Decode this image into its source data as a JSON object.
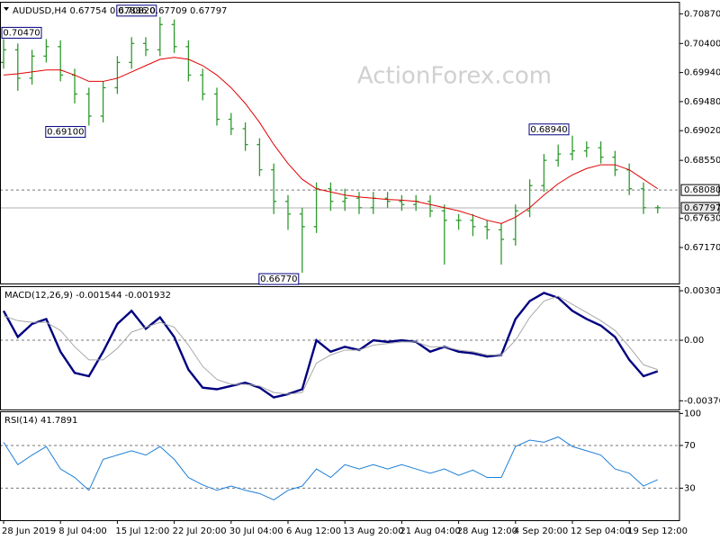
{
  "chart_data": [
    {
      "type": "ohlc",
      "title": "AUDUSD,H4  0.67754 0.67836 0.67709 0.67797",
      "watermark": "ActionForex.com",
      "color": "#2e9a2e",
      "categories": [
        "28 Jun 2019",
        null,
        null,
        null,
        "8 Jul 04:00",
        null,
        null,
        null,
        "15 Jul 12:00",
        null,
        null,
        null,
        "22 Jul 20:00",
        null,
        null,
        null,
        "30 Jul 04:00",
        null,
        null,
        null,
        "6 Aug 12:00",
        null,
        null,
        null,
        "13 Aug 20:00",
        null,
        null,
        null,
        "21 Aug 04:00",
        null,
        null,
        null,
        "28 Aug 12:00",
        null,
        null,
        null,
        "4 Sep 20:00",
        null,
        null,
        null,
        "12 Sep 04:00",
        null,
        null,
        null,
        "19 Sep 12:00",
        null,
        null
      ],
      "open": [
        0.701,
        0.703,
        0.6985,
        0.702,
        0.7035,
        0.699,
        0.696,
        0.6925,
        0.697,
        0.701,
        0.704,
        0.703,
        0.707,
        0.7035,
        0.699,
        0.696,
        0.692,
        0.6905,
        0.688,
        0.684,
        0.679,
        0.677,
        0.675,
        0.681,
        0.679,
        0.6795,
        0.678,
        0.6795,
        0.679,
        0.6785,
        0.679,
        0.6775,
        0.676,
        0.676,
        0.675,
        0.6745,
        0.673,
        0.6775,
        0.6815,
        0.6855,
        0.6865,
        0.687,
        0.6875,
        0.686,
        0.684,
        0.681,
        0.678
      ],
      "high": [
        0.7047,
        0.704,
        0.703,
        0.7047,
        0.7045,
        0.7,
        0.697,
        0.698,
        0.702,
        0.705,
        0.705,
        0.7082,
        0.7078,
        0.7045,
        0.7,
        0.697,
        0.693,
        0.6915,
        0.689,
        0.685,
        0.68,
        0.678,
        0.682,
        0.682,
        0.681,
        0.6805,
        0.6805,
        0.6805,
        0.68,
        0.68,
        0.68,
        0.6785,
        0.677,
        0.677,
        0.676,
        0.6755,
        0.6785,
        0.6825,
        0.6865,
        0.688,
        0.6894,
        0.6885,
        0.6885,
        0.687,
        0.685,
        0.682,
        0.6784
      ],
      "low": [
        0.7,
        0.6965,
        0.6975,
        0.701,
        0.698,
        0.6945,
        0.691,
        0.6915,
        0.696,
        0.7,
        0.702,
        0.702,
        0.7025,
        0.698,
        0.695,
        0.691,
        0.6895,
        0.687,
        0.683,
        0.677,
        0.6745,
        0.6677,
        0.674,
        0.6775,
        0.6775,
        0.677,
        0.677,
        0.678,
        0.6775,
        0.6775,
        0.6765,
        0.669,
        0.6745,
        0.6735,
        0.673,
        0.669,
        0.672,
        0.6765,
        0.6805,
        0.6845,
        0.6855,
        0.686,
        0.685,
        0.683,
        0.68,
        0.677,
        0.6771
      ],
      "close": [
        0.703,
        0.6985,
        0.702,
        0.7035,
        0.699,
        0.696,
        0.6925,
        0.697,
        0.701,
        0.704,
        0.703,
        0.707,
        0.7035,
        0.699,
        0.696,
        0.692,
        0.6905,
        0.688,
        0.684,
        0.679,
        0.677,
        0.675,
        0.681,
        0.679,
        0.6795,
        0.678,
        0.6795,
        0.679,
        0.6785,
        0.679,
        0.6775,
        0.676,
        0.676,
        0.675,
        0.6745,
        0.673,
        0.6775,
        0.6815,
        0.6855,
        0.6865,
        0.687,
        0.6875,
        0.686,
        0.684,
        0.681,
        0.678,
        0.678
      ],
      "series": [
        {
          "color": "#e00000",
          "values": [
            0.699,
            0.6992,
            0.6995,
            0.6998,
            0.6998,
            0.699,
            0.698,
            0.698,
            0.6985,
            0.6995,
            0.7005,
            0.7015,
            0.7018,
            0.7015,
            0.7005,
            0.699,
            0.697,
            0.6945,
            0.6915,
            0.688,
            0.685,
            0.6825,
            0.681,
            0.6805,
            0.68,
            0.6797,
            0.6795,
            0.6793,
            0.6792,
            0.679,
            0.6785,
            0.678,
            0.6775,
            0.6768,
            0.676,
            0.6755,
            0.6765,
            0.678,
            0.68,
            0.6818,
            0.6832,
            0.6842,
            0.6848,
            0.6848,
            0.684,
            0.6825,
            0.681
          ]
        }
      ],
      "ylim": [
        0.666,
        0.7106
      ],
      "yticks": [
        {
          "value": 0.7087,
          "label": "0.70870"
        },
        {
          "value": 0.704,
          "label": "0.70400"
        },
        {
          "value": 0.6994,
          "label": "0.69940"
        },
        {
          "value": 0.6948,
          "label": "0.69480"
        },
        {
          "value": 0.6902,
          "label": "0.69020"
        },
        {
          "value": 0.6855,
          "label": "0.68550"
        },
        {
          "value": 0.6763,
          "label": "0.67630"
        },
        {
          "value": 0.6717,
          "label": "0.67170"
        }
      ],
      "levels": [
        {
          "value": 0.6808,
          "label": "0.68080",
          "dashed": true
        },
        {
          "value": 0.67797,
          "label": "0.67797",
          "dashed": false
        }
      ],
      "annotations": [
        {
          "index": 0,
          "value": 0.7047,
          "label": "0.70470"
        },
        {
          "index": 11,
          "value": 0.7082,
          "label": "0.70820"
        },
        {
          "index": 6,
          "value": 0.691,
          "label": "0.69100"
        },
        {
          "index": 21,
          "value": 0.6677,
          "label": "0.66770"
        },
        {
          "index": 40,
          "value": 0.6894,
          "label": "0.68940"
        }
      ]
    },
    {
      "type": "line",
      "title": "MACD(12,26,9) -0.001544 -0.001932",
      "series": [
        {
          "color": "#000080",
          "values": [
            0.0018,
            0.0002,
            0.001,
            0.0013,
            -0.0007,
            -0.002,
            -0.0022,
            -0.0007,
            0.001,
            0.0018,
            0.0007,
            0.0014,
            0.0002,
            -0.0018,
            -0.0029,
            -0.003,
            -0.0028,
            -0.0026,
            -0.0029,
            -0.0035,
            -0.0033,
            -0.003,
            0,
            -0.0007,
            -0.0004,
            -0.0006,
            0,
            -0.0001,
            0,
            -0.0001,
            -0.0007,
            -0.0004,
            -0.0007,
            -0.0008,
            -0.001,
            -0.0009,
            0.0013,
            0.0024,
            0.0029,
            0.0026,
            0.0018,
            0.0013,
            0.0009,
            0.0002,
            -0.0012,
            -0.0022,
            -0.0019
          ]
        },
        {
          "color": "#a8a8a8",
          "values": [
            0.0015,
            0.0012,
            0.0011,
            0.0011,
            0.0006,
            -0.0004,
            -0.0012,
            -0.0012,
            -0.0005,
            0.0005,
            0.0008,
            0.0011,
            0.0008,
            -0.0003,
            -0.0016,
            -0.0024,
            -0.0027,
            -0.0027,
            -0.0028,
            -0.0032,
            -0.0033,
            -0.0032,
            -0.0014,
            -0.0009,
            -0.0006,
            -0.0006,
            -0.0003,
            -0.0002,
            -0.0001,
            -0.0001,
            -0.0004,
            -0.0004,
            -0.0006,
            -0.0007,
            -0.0009,
            -0.0009,
            0,
            0.0014,
            0.0024,
            0.0027,
            0.0022,
            0.0017,
            0.0012,
            0.0006,
            -0.0004,
            -0.0015,
            -0.0018
          ]
        }
      ],
      "ylim": [
        -0.00424,
        0.00331
      ],
      "yticks": [
        0.003031,
        {
          "value": 0,
          "label": "0.00"
        },
        -0.003706
      ],
      "levels": [
        0
      ]
    },
    {
      "type": "line",
      "title": "RSI(14) 41.7891",
      "series": [
        {
          "color": "#1e7fd8",
          "values": [
            73,
            52,
            61,
            69,
            48,
            40,
            28,
            57,
            61,
            65,
            61,
            69,
            57,
            40,
            33,
            28,
            32,
            28,
            25,
            19,
            28,
            32,
            48,
            40,
            52,
            48,
            52,
            48,
            52,
            48,
            44,
            48,
            42,
            47,
            40,
            40,
            69,
            75,
            73,
            78,
            69,
            65,
            61,
            48,
            44,
            32,
            38
          ]
        }
      ],
      "ylim": [
        0,
        102
      ],
      "yticks": [
        100,
        70,
        30
      ],
      "levels": [
        70,
        30
      ]
    }
  ]
}
